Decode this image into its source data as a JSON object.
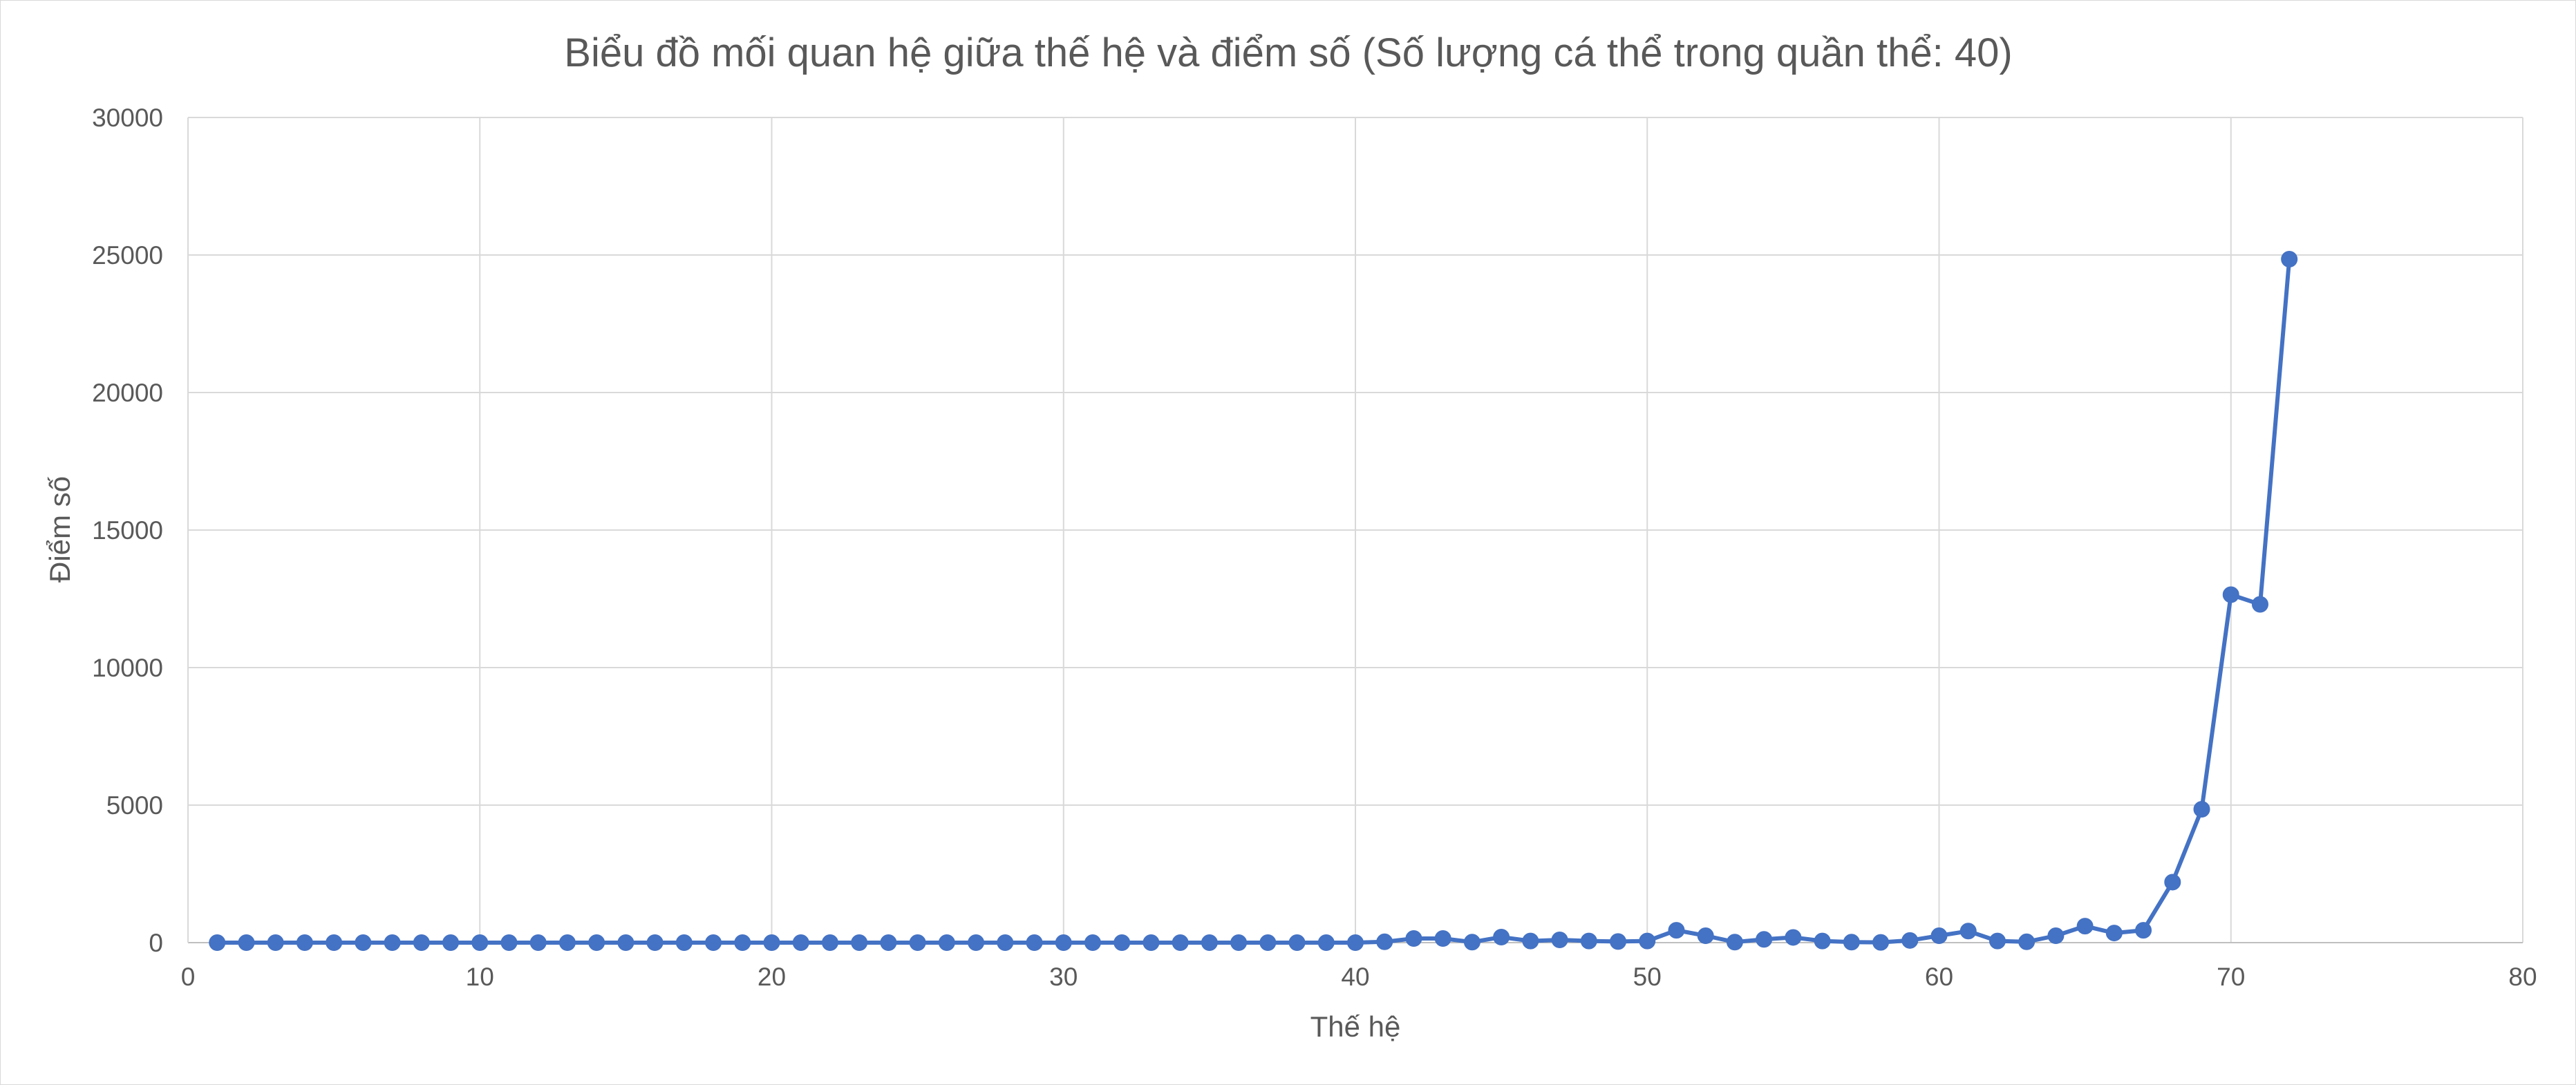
{
  "chart_data": {
    "type": "line",
    "title": "Biểu đồ mối quan hệ giữa thế hệ và điểm số (Số lượng cá thể trong quần thể: 40)",
    "xlabel": "Thế hệ",
    "ylabel": "Điểm số",
    "xlim": [
      0,
      80
    ],
    "ylim": [
      0,
      30000
    ],
    "x_ticks": [
      "0",
      "10",
      "20",
      "30",
      "40",
      "50",
      "60",
      "70",
      "80"
    ],
    "y_ticks": [
      "0",
      "5000",
      "10000",
      "15000",
      "20000",
      "25000",
      "30000"
    ],
    "grid": true,
    "legend": "none",
    "series": [
      {
        "color": "#4472C4",
        "marker": "circle",
        "x": [
          1,
          2,
          3,
          4,
          5,
          6,
          7,
          8,
          9,
          10,
          11,
          12,
          13,
          14,
          15,
          16,
          17,
          18,
          19,
          20,
          21,
          22,
          23,
          24,
          25,
          26,
          27,
          28,
          29,
          30,
          31,
          32,
          33,
          34,
          35,
          36,
          37,
          38,
          39,
          40,
          41,
          42,
          43,
          44,
          45,
          46,
          47,
          48,
          49,
          50,
          51,
          52,
          53,
          54,
          55,
          56,
          57,
          58,
          59,
          60,
          61,
          62,
          63,
          64,
          65,
          66,
          67,
          68,
          69,
          70,
          71,
          72
        ],
        "y": [
          0,
          0,
          0,
          0,
          0,
          0,
          0,
          0,
          0,
          0,
          0,
          0,
          0,
          0,
          0,
          0,
          0,
          0,
          0,
          0,
          0,
          0,
          0,
          0,
          0,
          0,
          0,
          0,
          0,
          0,
          0,
          0,
          0,
          0,
          0,
          0,
          0,
          0,
          0,
          0,
          30,
          150,
          150,
          20,
          200,
          60,
          100,
          60,
          40,
          60,
          450,
          250,
          20,
          120,
          190,
          60,
          20,
          10,
          80,
          250,
          420,
          60,
          30,
          250,
          600,
          350,
          450,
          2200,
          4850,
          12650,
          12300,
          24850
        ]
      }
    ]
  }
}
